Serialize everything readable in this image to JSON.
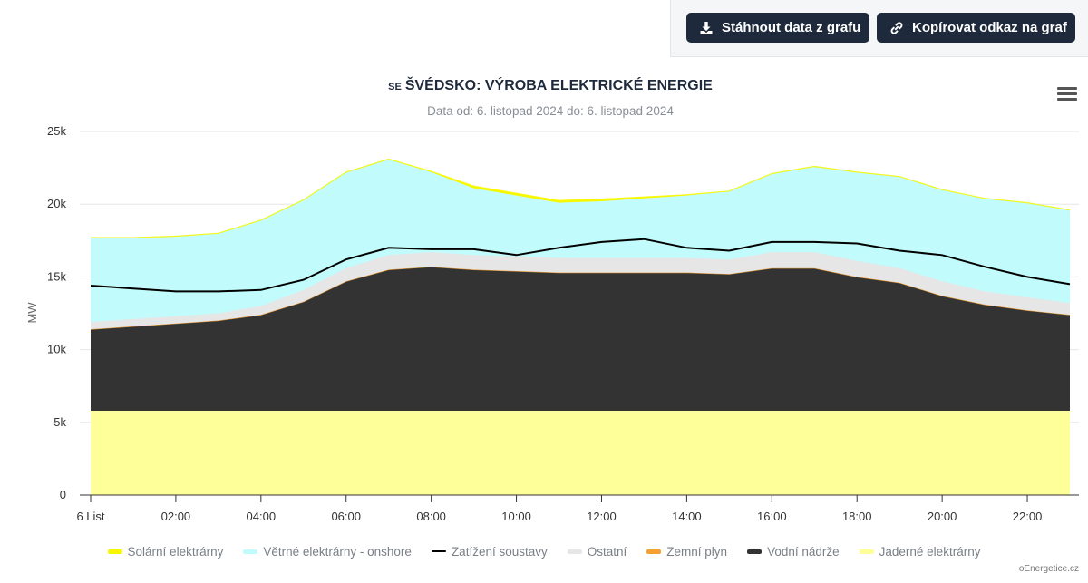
{
  "toolbar": {
    "download_label": "Stáhnout data z grafu",
    "copy_link_label": "Kopírovat odkaz na graf"
  },
  "header": {
    "country_code": "SE",
    "title": "ŠVÉDSKO: VÝROBA ELEKTRICKÉ ENERGIE",
    "subtitle": "Data od: 6. listopad 2024 do: 6. listopad 2024"
  },
  "credit": "oEnergetice.cz",
  "chart_data": {
    "type": "area",
    "stacked": true,
    "ylabel": "MW",
    "ylim": [
      0,
      25000
    ],
    "yticks": [
      0,
      5000,
      10000,
      15000,
      20000,
      25000
    ],
    "ytick_labels": [
      "0",
      "5k",
      "10k",
      "15k",
      "20k",
      "25k"
    ],
    "grid": true,
    "legend_position": "bottom",
    "x": [
      0,
      1,
      2,
      3,
      4,
      5,
      6,
      7,
      8,
      9,
      10,
      11,
      12,
      13,
      14,
      15,
      16,
      17,
      18,
      19,
      20,
      21,
      22,
      23
    ],
    "xtick_positions": [
      0,
      2,
      4,
      6,
      8,
      10,
      12,
      14,
      16,
      18,
      20,
      22
    ],
    "xtick_labels": [
      "6 List",
      "02:00",
      "04:00",
      "06:00",
      "08:00",
      "10:00",
      "12:00",
      "14:00",
      "16:00",
      "18:00",
      "20:00",
      "22:00"
    ],
    "series": [
      {
        "name": "Jaderné elektrárny",
        "color": "#ffff99",
        "values": [
          5800,
          5800,
          5800,
          5800,
          5800,
          5800,
          5800,
          5800,
          5800,
          5800,
          5800,
          5800,
          5800,
          5800,
          5800,
          5800,
          5800,
          5800,
          5800,
          5800,
          5800,
          5800,
          5800,
          5800
        ]
      },
      {
        "name": "Vodní nádrže",
        "color": "#333333",
        "values": [
          5600,
          5800,
          6000,
          6200,
          6600,
          7500,
          8900,
          9700,
          9900,
          9700,
          9600,
          9500,
          9500,
          9500,
          9500,
          9400,
          9800,
          9800,
          9200,
          8800,
          7900,
          7300,
          6900,
          6600
        ]
      },
      {
        "name": "Zemní plyn",
        "color": "#f5a030",
        "values": [
          0,
          0,
          0,
          0,
          0,
          0,
          0,
          0,
          0,
          0,
          0,
          0,
          0,
          0,
          0,
          0,
          0,
          0,
          0,
          0,
          0,
          0,
          0,
          0
        ]
      },
      {
        "name": "Ostatní",
        "color": "#e6e6e6",
        "values": [
          500,
          500,
          500,
          500,
          600,
          800,
          900,
          1000,
          1000,
          1000,
          1000,
          1000,
          1000,
          1000,
          1000,
          1000,
          1100,
          1100,
          1100,
          1000,
          1000,
          900,
          900,
          800
        ]
      },
      {
        "name": "Větrné elektrárny - onshore",
        "color": "#c2fbfb",
        "values": [
          5800,
          5600,
          5500,
          5500,
          5900,
          6200,
          6600,
          6600,
          5500,
          4600,
          4200,
          3800,
          3900,
          4100,
          4300,
          4700,
          5400,
          5900,
          6100,
          6300,
          6300,
          6400,
          6500,
          6400
        ]
      },
      {
        "name": "Solární elektrárny",
        "color": "#f7f700",
        "values": [
          0,
          0,
          0,
          0,
          0,
          0,
          0,
          0,
          50,
          150,
          150,
          150,
          150,
          100,
          50,
          0,
          0,
          0,
          0,
          0,
          0,
          0,
          0,
          0
        ]
      },
      {
        "name": "Zatížení soustavy",
        "color": "#000000",
        "type": "line",
        "values": [
          14400,
          14200,
          14000,
          14000,
          14100,
          14800,
          16200,
          17000,
          16900,
          16900,
          16500,
          17000,
          17400,
          17600,
          17000,
          16800,
          17400,
          17400,
          17300,
          16800,
          16500,
          15700,
          15000,
          14500
        ]
      }
    ],
    "legend_order": [
      "Solární elektrárny",
      "Větrné elektrárny - onshore",
      "Zatížení soustavy",
      "Ostatní",
      "Zemní plyn",
      "Vodní nádrže",
      "Jaderné elektrárny"
    ]
  }
}
